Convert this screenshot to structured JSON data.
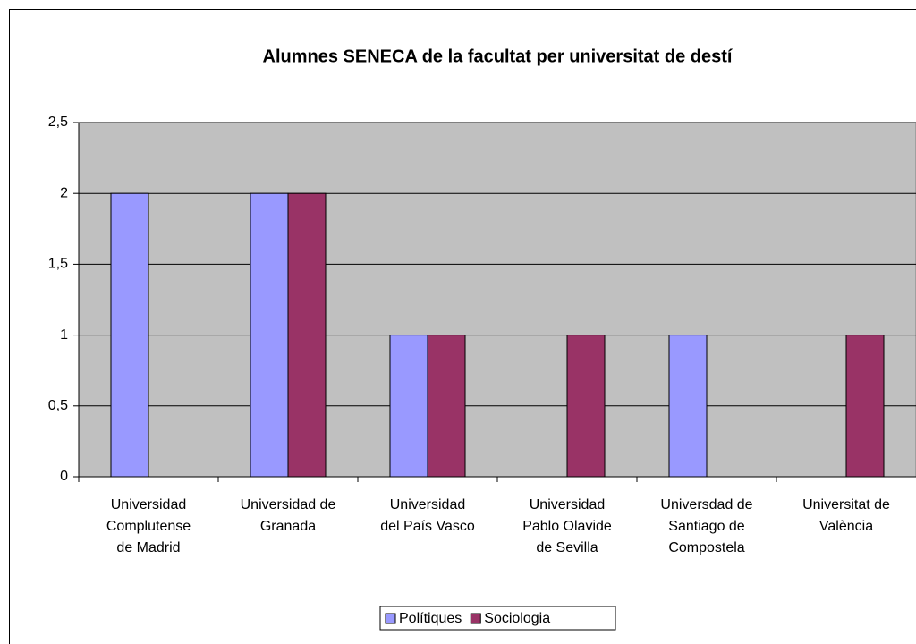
{
  "chart_data": {
    "type": "bar",
    "title": "Alumnes SENECA de la facultat per universitat de destí",
    "categories": [
      [
        "Universidad",
        "Complutense",
        "de Madrid"
      ],
      [
        "Universidad de",
        "Granada"
      ],
      [
        "Universidad",
        "del País Vasco"
      ],
      [
        "Universidad",
        "Pablo Olavide",
        "de Sevilla"
      ],
      [
        "Universdad de",
        "Santiago de",
        "Compostela"
      ],
      [
        "Universitat de",
        "València"
      ]
    ],
    "series": [
      {
        "name": "Polítiques",
        "color": "#9999ff",
        "values": [
          2,
          2,
          1,
          0,
          1,
          0
        ]
      },
      {
        "name": "Sociologia",
        "color": "#993366",
        "values": [
          0,
          2,
          1,
          1,
          0,
          1
        ]
      }
    ],
    "ylim": [
      0,
      2.5
    ],
    "yticks": [
      0,
      {
        "value": 0.5,
        "label": "0,5"
      },
      1,
      {
        "value": 1.5,
        "label": "1,5"
      },
      2,
      {
        "value": 2.5,
        "label": "2,5"
      }
    ],
    "grid": true,
    "legend": "bottom",
    "plot_background": "#c0c0c0"
  }
}
